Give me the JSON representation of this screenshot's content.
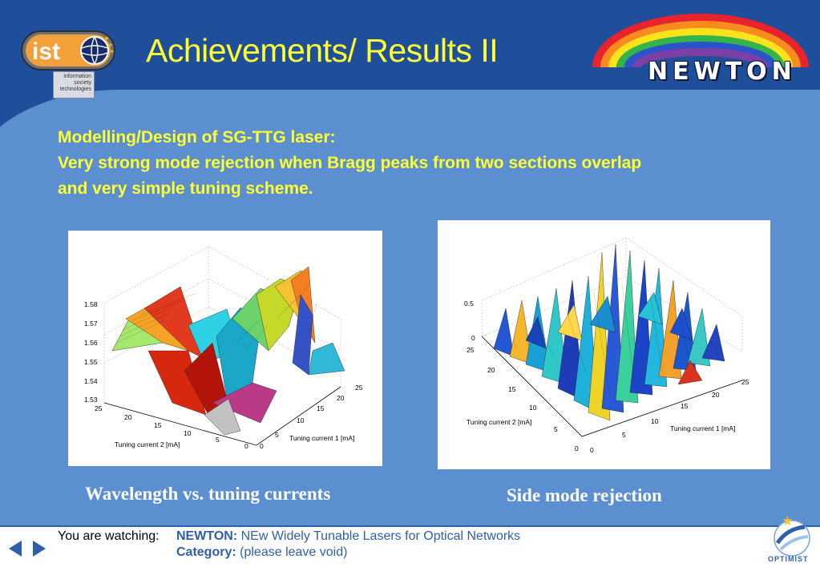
{
  "slide": {
    "title": "Achievements/ Results II",
    "headline_lines": [
      "Modelling/Design of SG-TTG laser:",
      "Very strong mode rejection when Bragg peaks from two sections overlap",
      "and very simple tuning scheme."
    ]
  },
  "logos": {
    "ist_caption": [
      "information",
      "society",
      "technologies"
    ],
    "newton_word": "NEWTON"
  },
  "figure_left": {
    "caption": "Wavelength vs. tuning currents",
    "z_ticks": [
      "1.58",
      "1.57",
      "1.56",
      "1.55",
      "1.54",
      "1.53"
    ],
    "x_ticks": [
      "25",
      "20",
      "15",
      "10",
      "5",
      "0"
    ],
    "y_ticks": [
      "0",
      "5",
      "10",
      "15",
      "20",
      "25"
    ],
    "xlabel": "Tuning current 2 [mA]",
    "ylabel": "Tuning current 1 [mA]"
  },
  "figure_right": {
    "caption": "Side mode rejection",
    "z_ticks": [
      "0.5",
      "0"
    ],
    "x_ticks": [
      "25",
      "20",
      "15",
      "10",
      "5",
      "0"
    ],
    "y_ticks": [
      "0",
      "5",
      "10",
      "15",
      "20",
      "25"
    ],
    "xlabel": "Tuning current 2 [mA]",
    "ylabel": "Tuning current 1 [mA]"
  },
  "footer": {
    "watching_label": "You are watching:",
    "project_label": "NEWTON:",
    "project_name": "NEw Widely Tunable Lasers for Optical Networks",
    "category_label": "Category:",
    "category_value": "(please leave void)",
    "optimist_word": "OPTIMIST"
  },
  "colors": {
    "title_yellow": "#ffff33",
    "background_dark": "#1f4f9b",
    "background_light": "#5b8fd0",
    "footer_blue": "#2f5fa8"
  },
  "icons": [
    "ist-logo",
    "newton-rainbow-logo",
    "prev-arrow-icon",
    "next-arrow-icon",
    "optimist-logo"
  ]
}
